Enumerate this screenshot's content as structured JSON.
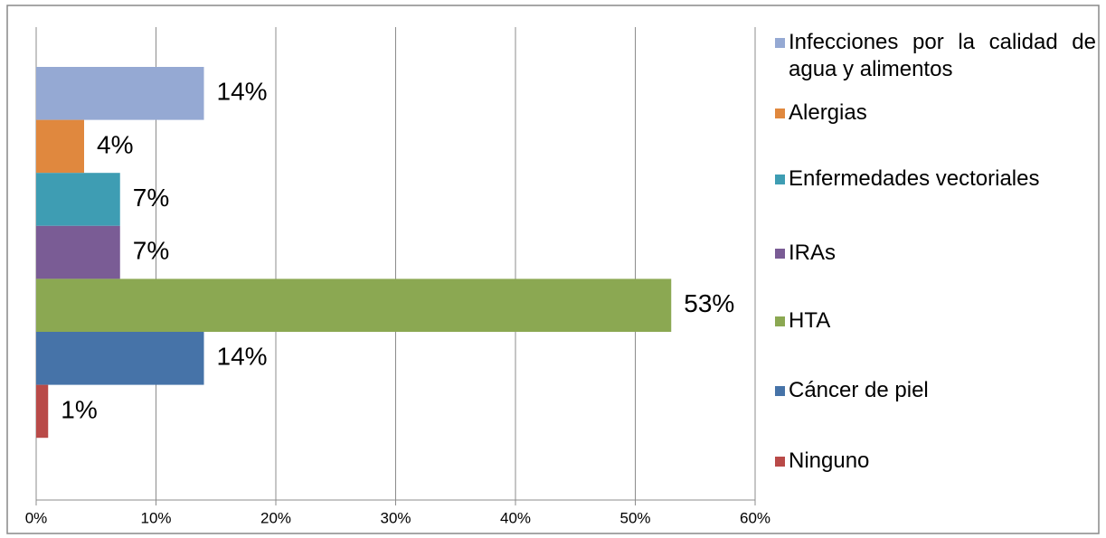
{
  "chart_data": {
    "type": "bar",
    "orientation": "horizontal",
    "series": [
      {
        "name": "Infecciones por la calidad de agua y alimentos",
        "color": "#95a9d3",
        "values": [
          14
        ],
        "value_labels": [
          "14%"
        ]
      },
      {
        "name": "Alergias",
        "color": "#e0883e",
        "values": [
          4
        ],
        "value_labels": [
          "4%"
        ]
      },
      {
        "name": "Enfermedades vectoriales",
        "color": "#3e9db3",
        "values": [
          7
        ],
        "value_labels": [
          "7%"
        ]
      },
      {
        "name": "IRAs",
        "color": "#7a5c95",
        "values": [
          7
        ],
        "value_labels": [
          "7%"
        ]
      },
      {
        "name": "HTA",
        "color": "#8ba852",
        "values": [
          53
        ],
        "value_labels": [
          "53%"
        ]
      },
      {
        "name": "Cáncer de piel",
        "color": "#4673a8",
        "values": [
          14
        ],
        "value_labels": [
          "14%"
        ]
      },
      {
        "name": "Ninguno",
        "color": "#b94a48",
        "values": [
          1
        ],
        "value_labels": [
          "1%"
        ]
      }
    ],
    "xlim": [
      0,
      60
    ],
    "xticks": [
      {
        "value": 0,
        "label": "0%"
      },
      {
        "value": 10,
        "label": "10%"
      },
      {
        "value": 20,
        "label": "20%"
      },
      {
        "value": 30,
        "label": "30%"
      },
      {
        "value": 40,
        "label": "40%"
      },
      {
        "value": 50,
        "label": "50%"
      },
      {
        "value": 60,
        "label": "60%"
      }
    ],
    "grid": true,
    "legend": "right"
  }
}
